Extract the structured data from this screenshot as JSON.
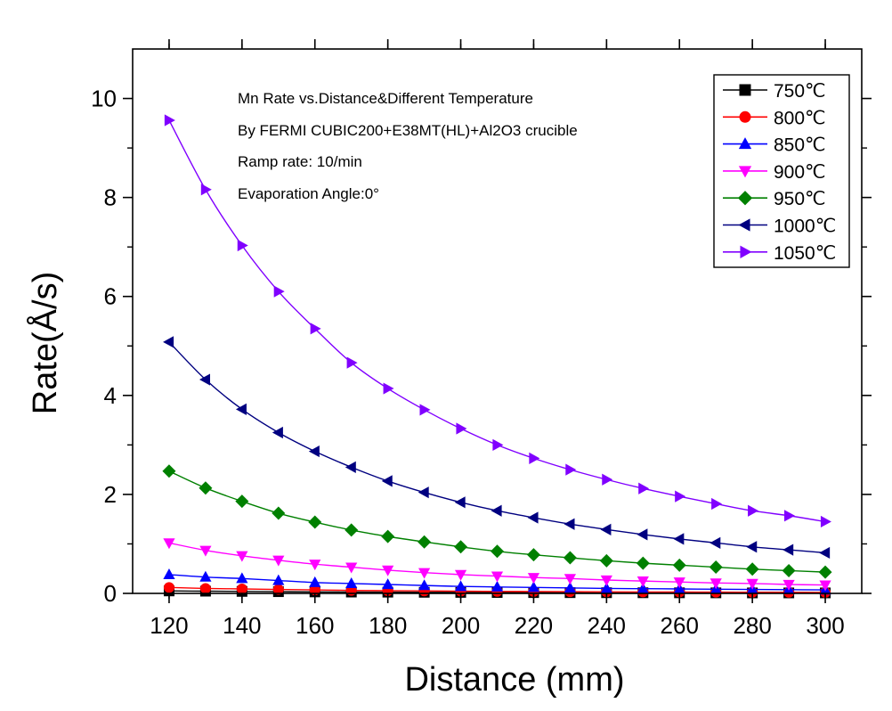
{
  "chart_data": {
    "type": "line",
    "xlabel": "Distance (mm)",
    "ylabel": "Rate(Å/s)",
    "xlim": [
      110,
      310
    ],
    "ylim": [
      0,
      11
    ],
    "x_ticks": [
      120,
      140,
      160,
      180,
      200,
      220,
      240,
      260,
      280,
      300
    ],
    "y_ticks": [
      0,
      2,
      4,
      6,
      8,
      10
    ],
    "grid": false,
    "legend_position": "top-right",
    "annotations": [
      "Mn Rate vs.Distance&Different Temperature",
      "By FERMI CUBIC200+E38MT(HL)+Al2O3 crucible",
      "Ramp rate:  10/min",
      "Evaporation Angle:0°"
    ],
    "x": [
      120,
      130,
      140,
      150,
      160,
      170,
      180,
      190,
      200,
      210,
      220,
      230,
      240,
      250,
      260,
      270,
      280,
      290,
      300
    ],
    "series": [
      {
        "name": "750℃",
        "marker": "square",
        "color": "#000000",
        "values": [
          0.05,
          0.045,
          0.04,
          0.035,
          0.03,
          0.027,
          0.025,
          0.022,
          0.02,
          0.018,
          0.016,
          0.015,
          0.014,
          0.013,
          0.012,
          0.011,
          0.01,
          0.01,
          0.01
        ]
      },
      {
        "name": "800℃",
        "marker": "circle",
        "color": "#ff0000",
        "values": [
          0.12,
          0.1,
          0.09,
          0.08,
          0.07,
          0.06,
          0.055,
          0.05,
          0.045,
          0.04,
          0.037,
          0.034,
          0.031,
          0.029,
          0.027,
          0.025,
          0.023,
          0.022,
          0.02
        ]
      },
      {
        "name": "850℃",
        "marker": "triangle-up",
        "color": "#0000ff",
        "values": [
          0.38,
          0.33,
          0.3,
          0.26,
          0.22,
          0.2,
          0.18,
          0.16,
          0.14,
          0.13,
          0.12,
          0.11,
          0.1,
          0.095,
          0.09,
          0.085,
          0.08,
          0.075,
          0.07
        ]
      },
      {
        "name": "900℃",
        "marker": "triangle-down",
        "color": "#ff00ff",
        "values": [
          1.02,
          0.87,
          0.76,
          0.67,
          0.59,
          0.53,
          0.47,
          0.42,
          0.38,
          0.35,
          0.32,
          0.3,
          0.27,
          0.25,
          0.23,
          0.21,
          0.2,
          0.18,
          0.17
        ]
      },
      {
        "name": "950℃",
        "marker": "diamond",
        "color": "#008000",
        "values": [
          2.47,
          2.13,
          1.86,
          1.62,
          1.44,
          1.28,
          1.15,
          1.04,
          0.94,
          0.85,
          0.78,
          0.72,
          0.66,
          0.61,
          0.57,
          0.53,
          0.49,
          0.46,
          0.43
        ]
      },
      {
        "name": "1000℃",
        "marker": "triangle-left",
        "color": "#000080",
        "values": [
          5.08,
          4.32,
          3.72,
          3.25,
          2.87,
          2.55,
          2.27,
          2.04,
          1.84,
          1.67,
          1.53,
          1.4,
          1.29,
          1.19,
          1.1,
          1.02,
          0.94,
          0.88,
          0.82
        ]
      },
      {
        "name": "1050℃",
        "marker": "triangle-right",
        "color": "#8000ff",
        "values": [
          9.56,
          8.16,
          7.03,
          6.1,
          5.35,
          4.66,
          4.14,
          3.71,
          3.33,
          3.0,
          2.73,
          2.5,
          2.3,
          2.12,
          1.96,
          1.81,
          1.67,
          1.57,
          1.45
        ]
      }
    ]
  }
}
